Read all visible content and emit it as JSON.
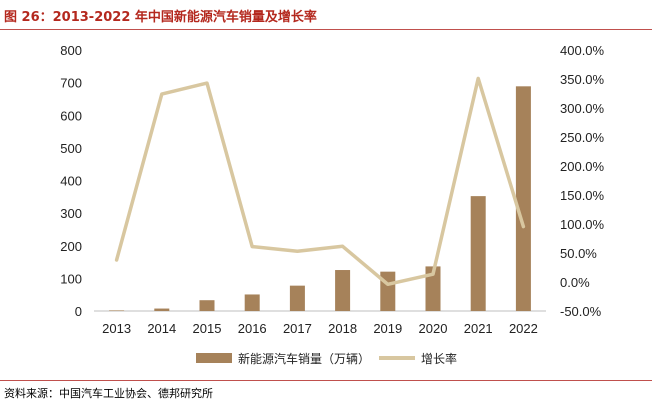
{
  "header": {
    "title": "图 26：2013-2022 年中国新能源汽车销量及增长率"
  },
  "footer": {
    "source": "资料来源：中国汽车工业协会、德邦研究所"
  },
  "colors": {
    "bar": "#a6825a",
    "line": "#d8c7a0",
    "title": "#b4281e",
    "rule": "#c0504d"
  },
  "chart_data": {
    "type": "bar",
    "categories": [
      "2013",
      "2014",
      "2015",
      "2016",
      "2017",
      "2018",
      "2019",
      "2020",
      "2021",
      "2022"
    ],
    "series": [
      {
        "name": "新能源汽车销量（万辆）",
        "type": "bar",
        "axis": "left",
        "values": [
          1.8,
          7.5,
          33.1,
          50.7,
          77.7,
          125.6,
          120.6,
          136.7,
          352.1,
          688.7
        ]
      },
      {
        "name": "增长率",
        "type": "line",
        "axis": "right",
        "values": [
          37.9,
          324.0,
          343.0,
          61.0,
          53.0,
          61.6,
          -4.0,
          13.4,
          351.0,
          95.6
        ]
      }
    ],
    "ylim_left": [
      0,
      800
    ],
    "yticks_left": [
      "0",
      "100",
      "200",
      "300",
      "400",
      "500",
      "600",
      "700",
      "800"
    ],
    "ylim_right": [
      -50,
      400
    ],
    "yticks_right": [
      "-50.0%",
      "0.0%",
      "50.0%",
      "100.0%",
      "150.0%",
      "200.0%",
      "250.0%",
      "300.0%",
      "350.0%",
      "400.0%"
    ],
    "grid": false,
    "legend_position": "bottom"
  }
}
